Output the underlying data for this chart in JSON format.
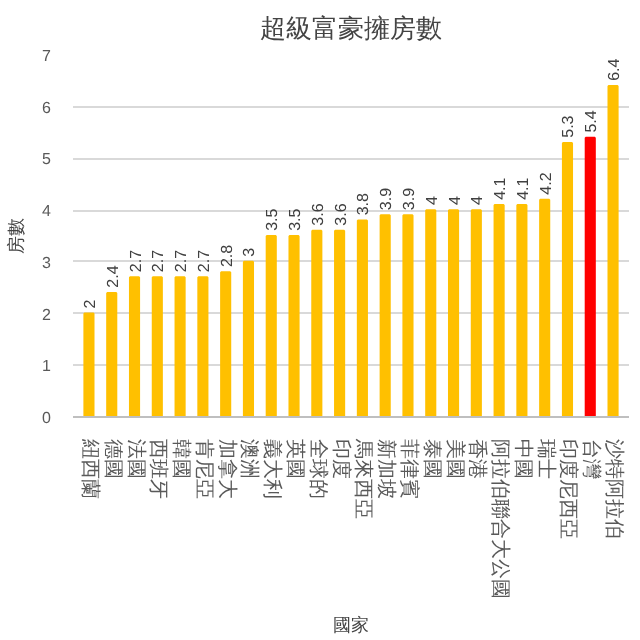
{
  "chart_data": {
    "type": "bar",
    "title": "超級富豪擁房數",
    "xlabel": "國家",
    "ylabel": "房數",
    "categories": [
      "紐西蘭",
      "德國",
      "法國",
      "西班牙",
      "韓國",
      "肯尼亞",
      "加拿大",
      "澳洲",
      "義大利",
      "英國",
      "全球的",
      "印度",
      "馬來西亞",
      "新加坡",
      "菲律賓",
      "泰國",
      "美國",
      "香港",
      "阿拉伯聯合大公國",
      "中國",
      "瑞士",
      "印度尼西亞",
      "台灣",
      "沙特阿拉伯"
    ],
    "values": [
      2,
      2.4,
      2.7,
      2.7,
      2.7,
      2.7,
      2.8,
      3,
      3.5,
      3.5,
      3.6,
      3.6,
      3.8,
      3.9,
      3.9,
      4,
      4,
      4,
      4.1,
      4.1,
      4.2,
      5.3,
      5.4,
      6.4
    ],
    "colors": [
      "#ffc000",
      "#ffc000",
      "#ffc000",
      "#ffc000",
      "#ffc000",
      "#ffc000",
      "#ffc000",
      "#ffc000",
      "#ffc000",
      "#ffc000",
      "#ffc000",
      "#ffc000",
      "#ffc000",
      "#ffc000",
      "#ffc000",
      "#ffc000",
      "#ffc000",
      "#ffc000",
      "#ffc000",
      "#ffc000",
      "#ffc000",
      "#ffc000",
      "#ff0000",
      "#ffc000"
    ],
    "ylim": [
      0,
      7
    ],
    "yticks": [
      0,
      1,
      2,
      3,
      4,
      5,
      6,
      7
    ],
    "grid": "y",
    "data_labels": true
  }
}
